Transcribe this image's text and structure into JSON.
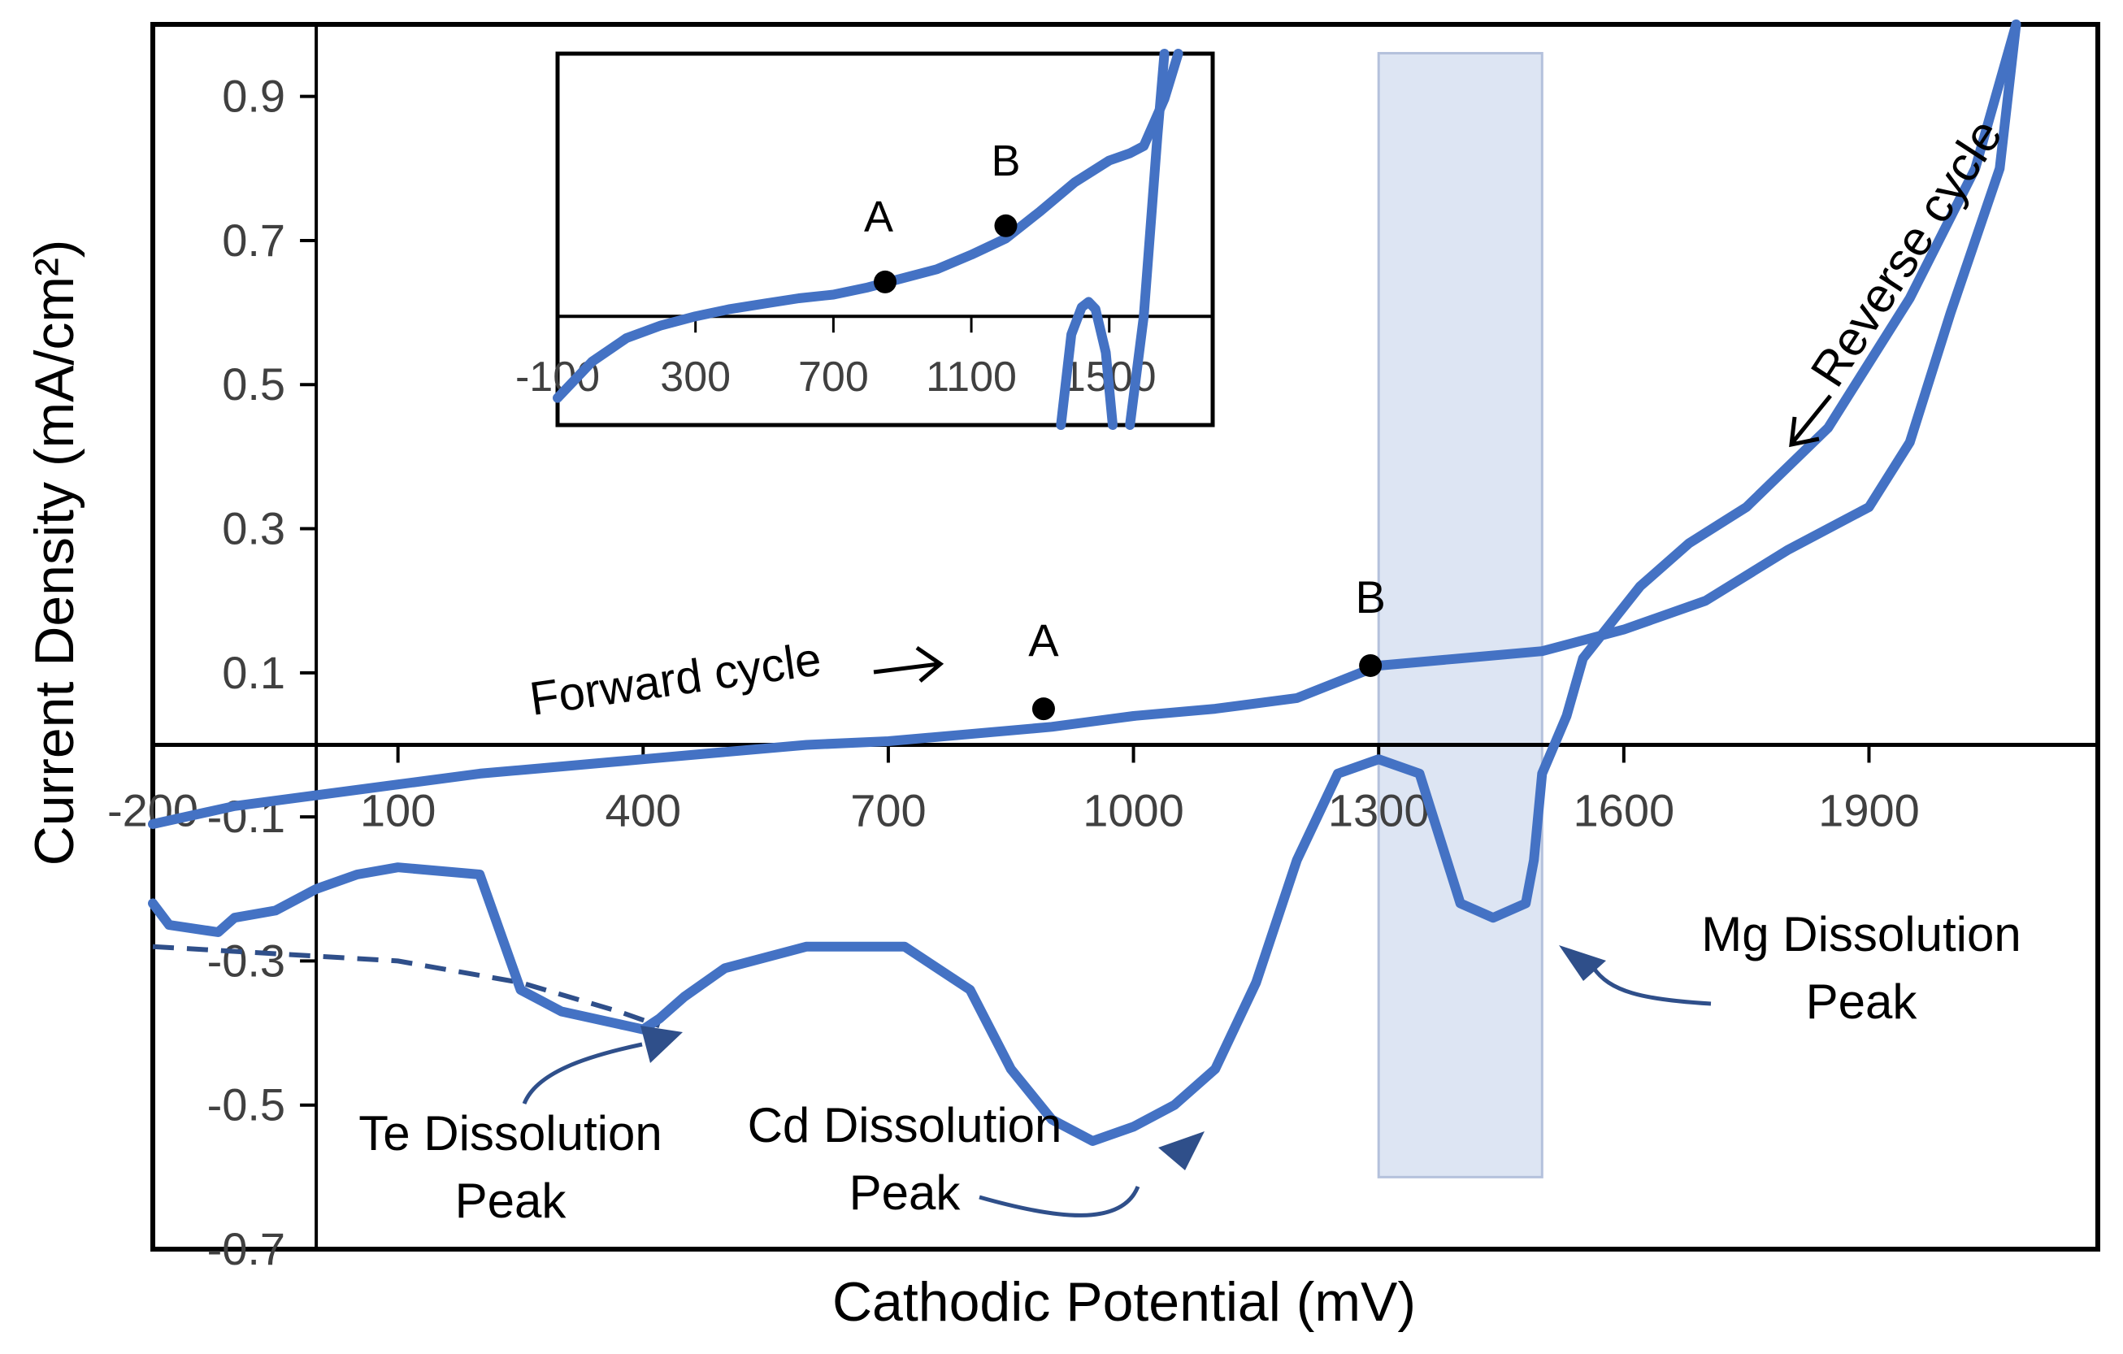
{
  "colors": {
    "curve": "#4472c4",
    "arrow": "#2f4f8a",
    "band": "#dde5f3",
    "axis": "#000000"
  },
  "chart_data": {
    "type": "line",
    "title": "",
    "xlabel": "Cathodic Potential (mV)",
    "ylabel": "Current Density (mA/cm²)",
    "xlim": [
      -200,
      2180
    ],
    "ylim": [
      -0.7,
      1.0
    ],
    "x_ticks": [
      -200,
      100,
      400,
      700,
      1000,
      1300,
      1600,
      1900
    ],
    "y_ticks": [
      -0.7,
      -0.5,
      -0.3,
      -0.1,
      0.1,
      0.3,
      0.5,
      0.7,
      0.9
    ],
    "x_tick_labels": [
      "-200",
      "100",
      "400",
      "700",
      "1000",
      "1300",
      "1600",
      "1900"
    ],
    "y_tick_labels": [
      "-0.7",
      "-0.5",
      "-0.3",
      "-0.1",
      "0.1",
      "0.3",
      "0.5",
      "0.7",
      "0.9"
    ],
    "highlight_band": {
      "x": [
        1300,
        1500
      ],
      "y": [
        -0.6,
        0.96
      ]
    },
    "series": [
      {
        "name": "Forward cycle",
        "x": [
          -200,
          -100,
          0,
          100,
          200,
          300,
          400,
          500,
          600,
          700,
          800,
          900,
          1000,
          1100,
          1200,
          1300,
          1400,
          1500,
          1600,
          1700,
          1800,
          1900,
          1950,
          2000,
          2060,
          2080
        ],
        "y": [
          -0.11,
          -0.085,
          -0.07,
          -0.055,
          -0.04,
          -0.03,
          -0.02,
          -0.01,
          0.0,
          0.005,
          0.015,
          0.025,
          0.04,
          0.05,
          0.065,
          0.11,
          0.12,
          0.13,
          0.16,
          0.2,
          0.27,
          0.33,
          0.42,
          0.6,
          0.8,
          1.0
        ]
      },
      {
        "name": "Reverse cycle",
        "x": [
          2080,
          2030,
          1950,
          1850,
          1750,
          1680,
          1620,
          1550,
          1530,
          1500,
          1490,
          1480,
          1440,
          1400,
          1350,
          1300,
          1250,
          1200,
          1150,
          1100,
          1050,
          1000,
          950,
          900,
          850,
          800,
          720,
          600,
          500,
          450,
          420,
          400,
          380,
          300,
          250,
          200,
          100,
          50,
          0,
          -50,
          -100,
          -120,
          -180,
          -200
        ],
        "y": [
          1.0,
          0.8,
          0.62,
          0.44,
          0.33,
          0.28,
          0.22,
          0.12,
          0.04,
          -0.04,
          -0.16,
          -0.22,
          -0.24,
          -0.22,
          -0.04,
          -0.02,
          -0.04,
          -0.16,
          -0.33,
          -0.45,
          -0.5,
          -0.53,
          -0.55,
          -0.52,
          -0.45,
          -0.34,
          -0.28,
          -0.28,
          -0.31,
          -0.35,
          -0.38,
          -0.395,
          -0.39,
          -0.37,
          -0.34,
          -0.18,
          -0.17,
          -0.18,
          -0.2,
          -0.23,
          -0.24,
          -0.26,
          -0.25,
          -0.22
        ]
      }
    ],
    "dashed_series": {
      "name": "Te baseline",
      "x": [
        -200,
        -50,
        100,
        250,
        370,
        420
      ],
      "y": [
        -0.28,
        -0.29,
        -0.3,
        -0.33,
        -0.37,
        -0.39
      ]
    },
    "points": [
      {
        "label": "A",
        "x": 890,
        "y": 0.05
      },
      {
        "label": "B",
        "x": 1290,
        "y": 0.11
      }
    ],
    "annotations": {
      "forward": "Forward cycle",
      "reverse": "Reverse cycle",
      "te_line1": "Te Dissolution",
      "te_line2": "Peak",
      "cd_line1": "Cd Dissolution",
      "cd_line2": "Peak",
      "mg_line1": "Mg Dissolution",
      "mg_line2": "Peak"
    },
    "inset": {
      "type": "line",
      "xlim": [
        -100,
        1800
      ],
      "x_ticks": [
        -100,
        300,
        700,
        1100,
        1500
      ],
      "x_tick_labels": [
        "-100",
        "300",
        "700",
        "1100",
        "1500"
      ],
      "series": [
        {
          "name": "Forward cycle (inset)",
          "x": [
            -100,
            0,
            100,
            200,
            300,
            400,
            500,
            600,
            700,
            800,
            900,
            1000,
            1100,
            1200,
            1300,
            1400,
            1500,
            1560,
            1600,
            1660,
            1700
          ],
          "y": [
            -0.45,
            -0.25,
            -0.12,
            -0.05,
            0.0,
            0.04,
            0.07,
            0.1,
            0.12,
            0.16,
            0.21,
            0.26,
            0.34,
            0.43,
            0.58,
            0.74,
            0.86,
            0.9,
            0.94,
            1.2,
            1.45
          ]
        },
        {
          "name": "Reverse cycle (inset)",
          "x": [
            1660,
            1640,
            1600,
            1560
          ],
          "y": [
            1.45,
            1.0,
            0.0,
            -0.6
          ]
        },
        {
          "name": "Dip (inset)",
          "x": [
            1360,
            1390,
            1420,
            1440,
            1460,
            1490,
            1510
          ],
          "y": [
            -0.6,
            -0.1,
            0.05,
            0.08,
            0.04,
            -0.2,
            -0.6
          ]
        }
      ],
      "points": [
        {
          "label": "A",
          "x": 850,
          "y": 0.19
        },
        {
          "label": "B",
          "x": 1200,
          "y": 0.5
        }
      ]
    }
  }
}
